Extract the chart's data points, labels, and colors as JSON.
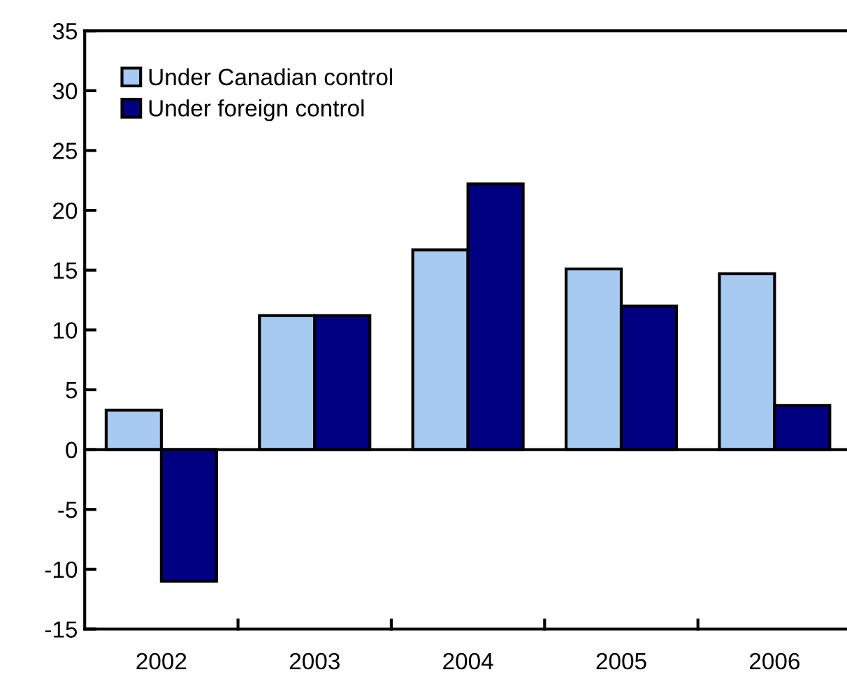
{
  "chart_data": {
    "type": "bar",
    "categories": [
      "2002",
      "2003",
      "2004",
      "2005",
      "2006"
    ],
    "series": [
      {
        "name": "Under Canadian control",
        "color": "#a6caf0",
        "values": [
          3.3,
          11.2,
          16.7,
          15.1,
          14.7
        ]
      },
      {
        "name": "Under foreign control",
        "color": "#000080",
        "values": [
          -11.0,
          11.2,
          22.2,
          12.0,
          3.7
        ]
      }
    ],
    "ylim": [
      -15,
      35
    ],
    "yticks": [
      -15,
      -10,
      -5,
      0,
      5,
      10,
      15,
      20,
      25,
      30,
      35
    ],
    "ref_lines": [
      {
        "axis": "y",
        "value": 0,
        "color": "#000000"
      }
    ],
    "grid": false,
    "legend": "top left"
  }
}
